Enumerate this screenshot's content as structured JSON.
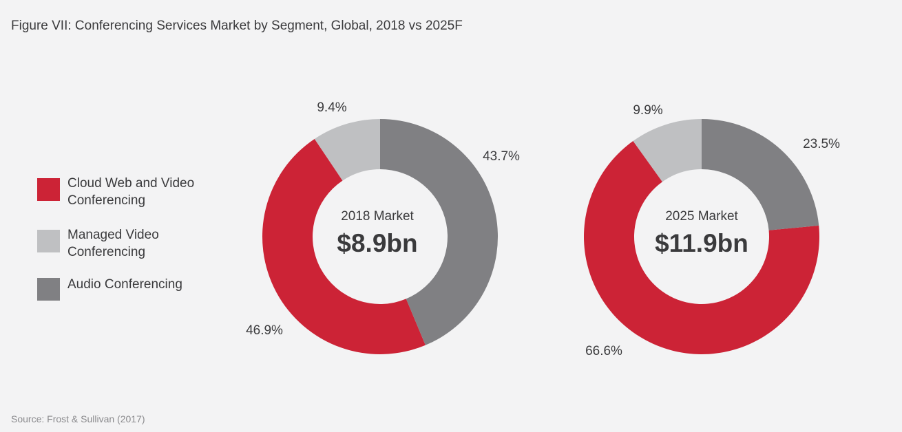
{
  "title": "Figure VII: Conferencing Services Market by Segment, Global, 2018 vs 2025F",
  "source": "Source: Frost & Sullivan (2017)",
  "legend": [
    {
      "label": "Cloud Web and Video Conferencing",
      "color": "#cc2336"
    },
    {
      "label": "Managed Video Conferencing",
      "color": "#bfc0c2"
    },
    {
      "label": "Audio Conferencing",
      "color": "#808083"
    }
  ],
  "chart_data": [
    {
      "type": "pie",
      "variant": "donut",
      "center_label": "2018 Market",
      "center_value": "$8.9bn",
      "categories": [
        "Cloud Web and Video Conferencing",
        "Managed Video Conferencing",
        "Audio Conferencing"
      ],
      "values": [
        46.9,
        9.4,
        43.7
      ],
      "labels": [
        "46.9%",
        "9.4%",
        "43.7%"
      ],
      "colors": [
        "#cc2336",
        "#bfc0c2",
        "#808083"
      ]
    },
    {
      "type": "pie",
      "variant": "donut",
      "center_label": "2025 Market",
      "center_value": "$11.9bn",
      "categories": [
        "Cloud Web and Video Conferencing",
        "Managed Video Conferencing",
        "Audio Conferencing"
      ],
      "values": [
        66.6,
        9.9,
        23.5
      ],
      "labels": [
        "66.6%",
        "9.9%",
        "23.5%"
      ],
      "colors": [
        "#cc2336",
        "#bfc0c2",
        "#808083"
      ]
    }
  ]
}
